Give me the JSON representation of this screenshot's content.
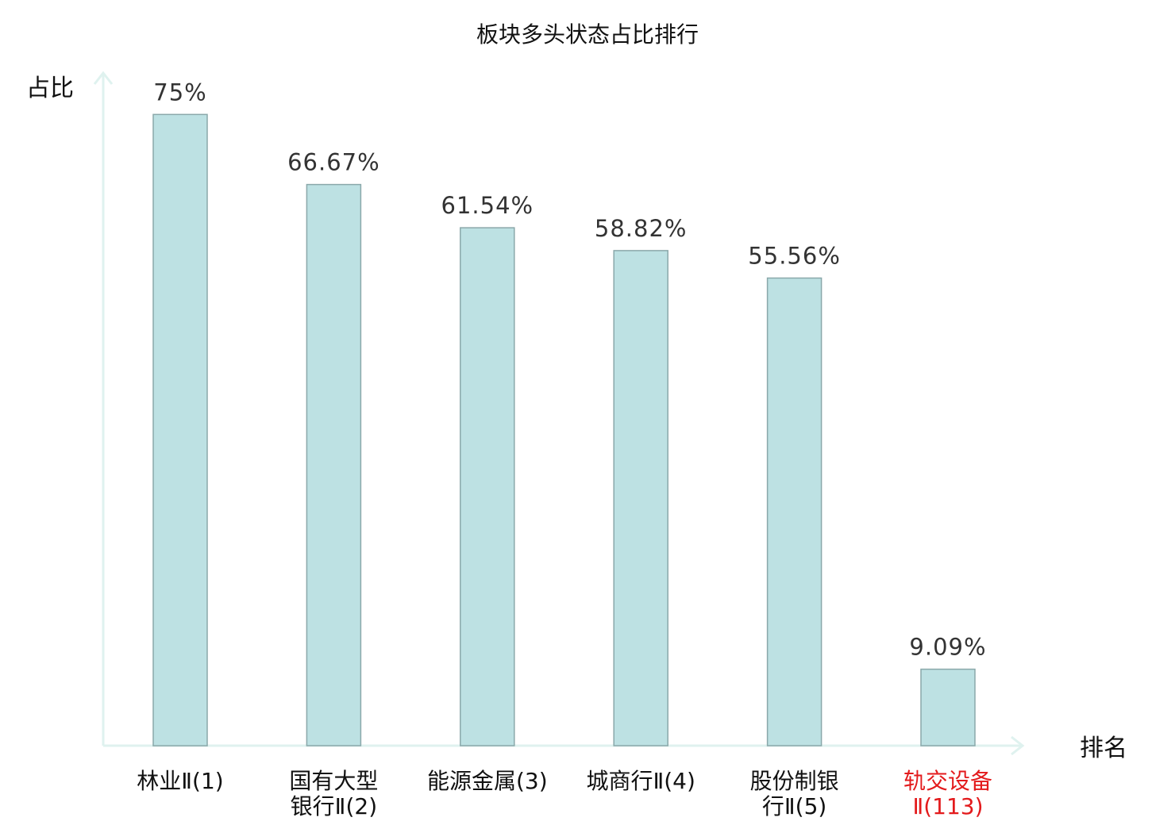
{
  "chart_data": {
    "type": "bar",
    "title": "板块多头状态占比排行",
    "ylabel": "占比",
    "xlabel": "排名",
    "categories": [
      [
        "林业Ⅱ(1)"
      ],
      [
        "国有大型",
        "银行Ⅱ(2)"
      ],
      [
        "能源金属(3)"
      ],
      [
        "城商行Ⅱ(4)"
      ],
      [
        "股份制银",
        "行Ⅱ(5)"
      ],
      [
        "轨交设备",
        "Ⅱ(113)"
      ]
    ],
    "values": [
      75,
      66.67,
      61.54,
      58.82,
      55.56,
      9.09
    ],
    "value_labels": [
      "75%",
      "66.67%",
      "61.54%",
      "58.82%",
      "55.56%",
      "9.09%"
    ],
    "highlight_index": 5,
    "ylim": [
      0,
      100
    ],
    "grid": false,
    "legend": "none"
  },
  "colors": {
    "bar_fill": "#bde1e3",
    "bar_stroke": "#8aa8aa",
    "axis": "#dff2ef",
    "category_text": "#111111",
    "highlight_text": "#e31a1c"
  }
}
